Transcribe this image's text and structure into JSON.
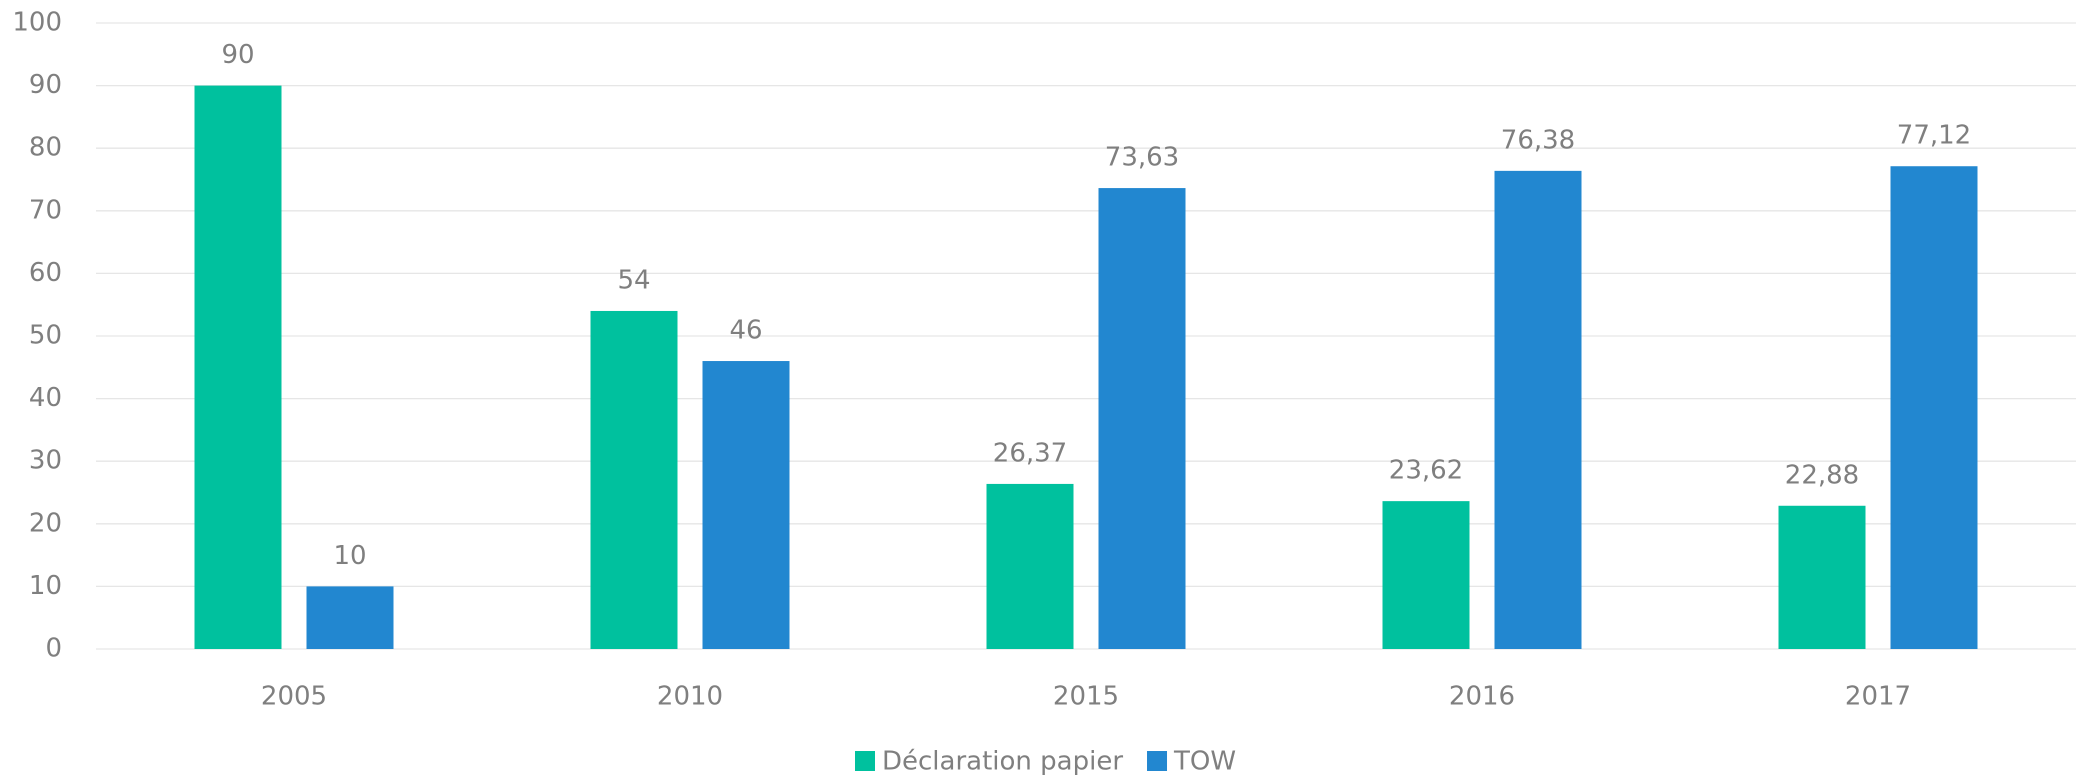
{
  "chart_data": {
    "type": "bar",
    "categories": [
      "2005",
      "2010",
      "2015",
      "2016",
      "2017"
    ],
    "series": [
      {
        "name": "Déclaration papier",
        "color": "#00c19e",
        "values": [
          90,
          54,
          26.37,
          23.62,
          22.88
        ],
        "value_labels": [
          "90",
          "54",
          "26,37",
          "23,62",
          "22,88"
        ]
      },
      {
        "name": "TOW",
        "color": "#2287d0",
        "values": [
          10,
          46,
          73.63,
          76.38,
          77.12
        ],
        "value_labels": [
          "10",
          "46",
          "73,63",
          "76,38",
          "77,12"
        ]
      }
    ],
    "ylim": [
      0,
      100
    ],
    "yticks": [
      0,
      10,
      20,
      30,
      40,
      50,
      60,
      70,
      80,
      90,
      100
    ],
    "grid": true,
    "legend": "bottom"
  }
}
